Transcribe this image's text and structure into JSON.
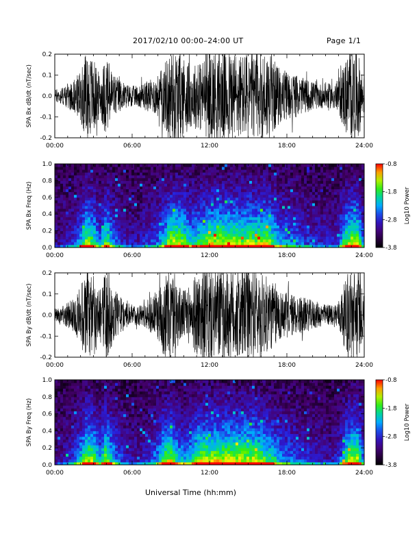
{
  "header": {
    "title": "2017/02/10   00:00–24:00 UT",
    "page": "Page 1/1"
  },
  "x_axis_label": "Universal Time (hh:mm)",
  "chart_data": [
    {
      "type": "line",
      "ylabel": "SPA Bx dB/dt (nT/sec)",
      "xlim": [
        0,
        24
      ],
      "ylim": [
        -0.2,
        0.2
      ],
      "x_ticks": [
        "00:00",
        "06:00",
        "12:00",
        "18:00",
        "24:00"
      ],
      "y_ticks": [
        "-0.2",
        "-0.1",
        "0.0",
        "0.1",
        "0.2"
      ],
      "envelope": {
        "hours": [
          0,
          0.5,
          1,
          1.5,
          2,
          2.5,
          3,
          3.5,
          4,
          4.5,
          5,
          5.5,
          6,
          6.5,
          7,
          7.5,
          8,
          8.5,
          9,
          9.5,
          10,
          10.5,
          11,
          11.5,
          12,
          12.5,
          13,
          13.5,
          14,
          14.5,
          15,
          15.5,
          16,
          16.5,
          17,
          17.5,
          18,
          18.5,
          19,
          19.5,
          20,
          20.5,
          21,
          21.5,
          22,
          22.5,
          23,
          23.5,
          24
        ],
        "amplitude": [
          0.03,
          0.04,
          0.06,
          0.08,
          0.12,
          0.22,
          0.18,
          0.1,
          0.2,
          0.12,
          0.08,
          0.06,
          0.05,
          0.05,
          0.07,
          0.08,
          0.1,
          0.16,
          0.22,
          0.22,
          0.2,
          0.15,
          0.16,
          0.18,
          0.22,
          0.22,
          0.22,
          0.22,
          0.22,
          0.2,
          0.22,
          0.2,
          0.22,
          0.22,
          0.17,
          0.13,
          0.12,
          0.11,
          0.09,
          0.08,
          0.07,
          0.06,
          0.06,
          0.06,
          0.08,
          0.18,
          0.22,
          0.22,
          0.08
        ]
      }
    },
    {
      "type": "heatmap",
      "ylabel": "SPA Bx Freq (Hz)",
      "colorbar_label": "Log10 Power",
      "xlim": [
        0,
        24
      ],
      "ylim": [
        0,
        1.0
      ],
      "x_ticks": [
        "00:00",
        "06:00",
        "12:00",
        "18:00",
        "24:00"
      ],
      "y_ticks": [
        "0.0",
        "0.2",
        "0.4",
        "0.6",
        "0.8",
        "1.0"
      ],
      "colorbar_ticks": [
        "-0.8",
        "-1.8",
        "-2.8",
        "-3.8"
      ],
      "clim": [
        -3.8,
        -0.8
      ]
    },
    {
      "type": "line",
      "ylabel": "SPA By dB/dt (nT/sec)",
      "xlim": [
        0,
        24
      ],
      "ylim": [
        -0.2,
        0.2
      ],
      "x_ticks": [
        "00:00",
        "06:00",
        "12:00",
        "18:00",
        "24:00"
      ],
      "y_ticks": [
        "-0.2",
        "-0.1",
        "0.0",
        "0.1",
        "0.2"
      ],
      "envelope": {
        "hours": [
          0,
          0.5,
          1,
          1.5,
          2,
          2.5,
          3,
          3.5,
          4,
          4.5,
          5,
          5.5,
          6,
          6.5,
          7,
          7.5,
          8,
          8.5,
          9,
          9.5,
          10,
          10.5,
          11,
          11.5,
          12,
          12.5,
          13,
          13.5,
          14,
          14.5,
          15,
          15.5,
          16,
          16.5,
          17,
          17.5,
          18,
          18.5,
          19,
          19.5,
          20,
          20.5,
          21,
          21.5,
          22,
          22.5,
          23,
          23.5,
          24
        ],
        "amplitude": [
          0.03,
          0.04,
          0.06,
          0.08,
          0.14,
          0.22,
          0.2,
          0.12,
          0.22,
          0.14,
          0.09,
          0.06,
          0.05,
          0.05,
          0.06,
          0.09,
          0.12,
          0.2,
          0.22,
          0.15,
          0.12,
          0.14,
          0.2,
          0.22,
          0.22,
          0.22,
          0.22,
          0.22,
          0.22,
          0.22,
          0.22,
          0.22,
          0.2,
          0.18,
          0.16,
          0.12,
          0.11,
          0.1,
          0.09,
          0.08,
          0.07,
          0.06,
          0.05,
          0.05,
          0.07,
          0.16,
          0.22,
          0.22,
          0.08
        ]
      }
    },
    {
      "type": "heatmap",
      "ylabel": "SPA By Freq (Hz)",
      "colorbar_label": "Log10 Power",
      "xlim": [
        0,
        24
      ],
      "ylim": [
        0,
        1.0
      ],
      "x_ticks": [
        "00:00",
        "06:00",
        "12:00",
        "18:00",
        "24:00"
      ],
      "y_ticks": [
        "0.0",
        "0.2",
        "0.4",
        "0.6",
        "0.8",
        "1.0"
      ],
      "colorbar_ticks": [
        "-0.8",
        "-1.8",
        "-2.8",
        "-3.8"
      ],
      "clim": [
        -3.8,
        -0.8
      ]
    }
  ]
}
